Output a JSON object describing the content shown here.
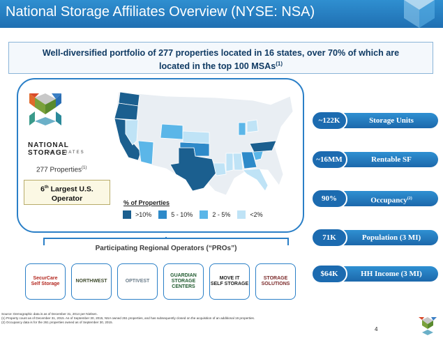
{
  "header": {
    "title": "National Storage Affiliates Overview (NYSE: NSA)"
  },
  "banner": {
    "line1": "Well-diversified portfolio of 277 properties located in 16 states, over 70% of which are",
    "line2": "located in the top 100 MSAs",
    "footnote_mark": "(1)"
  },
  "company": {
    "name": "NATIONAL STORAGE",
    "sub": "AFFILIATES",
    "properties_text": "277 Properties",
    "properties_mark": "(1)",
    "rank_number": "6",
    "rank_suffix": "th",
    "rank_rest": " Largest U.S.",
    "rank_line2": "Operator"
  },
  "legend": {
    "title": "% of Properties",
    "items": [
      {
        "label": ">10%",
        "color": "#1b5f8f"
      },
      {
        "label": "5 - 10%",
        "color": "#2e8ac9"
      },
      {
        "label": "2 - 5%",
        "color": "#5bb6e8"
      },
      {
        "label": "<2%",
        "color": "#bfe3f6"
      }
    ]
  },
  "stats": [
    {
      "value": "~122K",
      "label": "Storage Units",
      "mark": ""
    },
    {
      "value": "~16MM",
      "label": "Rentable SF",
      "mark": ""
    },
    {
      "value": "90%",
      "label": "Occupancy",
      "mark": "(2)"
    },
    {
      "value": "71K",
      "label": "Population (3 MI)",
      "mark": ""
    },
    {
      "value": "$64K",
      "label": "HH Income (3 MI)",
      "mark": ""
    }
  ],
  "pros": {
    "title": "Participating Regional Operators (“PROs”)",
    "operators": [
      {
        "line1": "SecurCare",
        "line2": "Self Storage",
        "color": "#b3261e"
      },
      {
        "line1": "NORTHWEST",
        "line2": "",
        "color": "#3d4a2c"
      },
      {
        "line1": "OPTIVEST",
        "line2": "",
        "color": "#6a7c8a"
      },
      {
        "line1": "GUARDIAN",
        "line2": "STORAGE CENTERS",
        "color": "#1f5a2e"
      },
      {
        "line1": "MOVE IT",
        "line2": "SELF STORAGE",
        "color": "#222222"
      },
      {
        "line1": "STORAGE",
        "line2": "SOLUTIONS",
        "color": "#7b2a2a"
      }
    ]
  },
  "footnotes": [
    "Source:  Demographic data is as of December 31, 2014 per Nielsen.",
    "(1)    Property count as of December 31, 2015. As of September 30, 2015, NSA owned 261 properties, and has subsequently closed on the acquisition of an additional 16 properties.",
    "(2)    Occupancy data is for the 261 properties owned as of September 30, 2015."
  ],
  "page_number": "4"
}
